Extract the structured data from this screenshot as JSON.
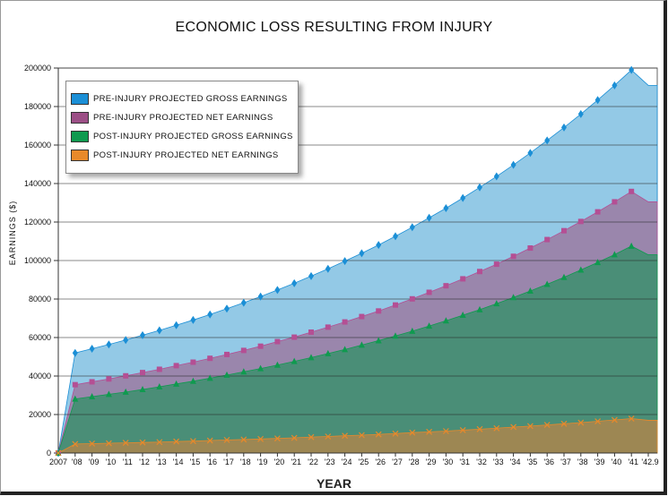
{
  "chart_data": {
    "type": "area",
    "title": "ECONOMIC LOSS RESULTING FROM INJURY",
    "xlabel": "YEAR",
    "ylabel": "EARNINGS ($)",
    "ylim": [
      0,
      200000
    ],
    "yticks": [
      0,
      20000,
      40000,
      60000,
      80000,
      100000,
      120000,
      140000,
      160000,
      180000,
      200000
    ],
    "grid": true,
    "legend_position": "top-left",
    "categories": [
      "2007",
      "'08",
      "'09",
      "'10",
      "'11",
      "'12",
      "'13",
      "'14",
      "'15",
      "'16",
      "'17",
      "'18",
      "'19",
      "'20",
      "'21",
      "'22",
      "'23",
      "'24",
      "'25",
      "'26",
      "'27",
      "'28",
      "'29",
      "'30",
      "'31",
      "'32",
      "'33",
      "'34",
      "'35",
      "'36",
      "'37",
      "'38",
      "'39",
      "'40",
      "'41",
      "'42.9"
    ],
    "series": [
      {
        "name": "PRE-INJURY PROJECTED GROSS EARNINGS",
        "color": "#1b8fd6",
        "fill": "#93c9e6",
        "marker": "diamond",
        "values": [
          0,
          52000,
          54200,
          56400,
          58700,
          61200,
          63700,
          66400,
          69100,
          72000,
          75000,
          78100,
          81300,
          84700,
          88200,
          91900,
          95700,
          99700,
          103800,
          108100,
          112600,
          117300,
          122200,
          127200,
          132500,
          138000,
          143700,
          149700,
          155900,
          162400,
          169100,
          176100,
          183400,
          191000,
          199000,
          191000
        ]
      },
      {
        "name": "PRE-INJURY PROJECTED NET EARNINGS",
        "color": "#b44f94",
        "fill": "#9a86ac",
        "marker": "square",
        "values": [
          0,
          35500,
          37000,
          38500,
          40100,
          41800,
          43500,
          45400,
          47200,
          49200,
          51200,
          53300,
          55500,
          57900,
          60200,
          62800,
          65400,
          68100,
          70900,
          73800,
          76900,
          80100,
          83500,
          86900,
          90500,
          94300,
          98100,
          102200,
          106500,
          110900,
          115500,
          120300,
          125300,
          130500,
          135900,
          130500
        ]
      },
      {
        "name": "POST-INJURY PROJECTED GROSS EARNINGS",
        "color": "#0f9a4f",
        "fill": "#4a8e77",
        "marker": "triangle",
        "values": [
          0,
          28100,
          29300,
          30500,
          31700,
          33000,
          34400,
          35900,
          37300,
          38900,
          40500,
          42200,
          43900,
          45700,
          47600,
          49600,
          51700,
          53800,
          56100,
          58400,
          60800,
          63300,
          66000,
          68700,
          71600,
          74500,
          77600,
          80800,
          84200,
          87700,
          91300,
          95100,
          99000,
          103100,
          107500,
          103000
        ]
      },
      {
        "name": "POST-INJURY PROJECTED NET EARNINGS",
        "color": "#e8892a",
        "fill": "#9d8753",
        "marker": "x",
        "values": [
          0,
          4700,
          4900,
          5100,
          5300,
          5500,
          5700,
          6000,
          6200,
          6500,
          6800,
          7000,
          7300,
          7600,
          7900,
          8300,
          8600,
          9000,
          9300,
          9700,
          10100,
          10600,
          11000,
          11400,
          11900,
          12400,
          12900,
          13500,
          14000,
          14600,
          15200,
          15800,
          16500,
          17200,
          17900,
          17000
        ]
      }
    ]
  }
}
